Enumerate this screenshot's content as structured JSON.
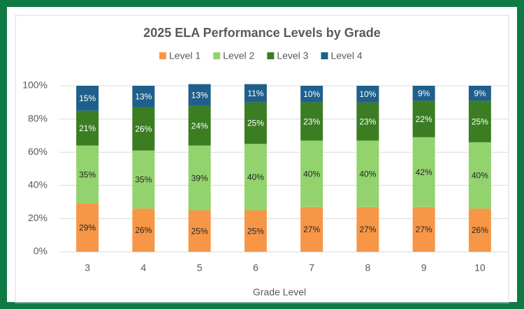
{
  "chart_data": {
    "type": "stacked_bar",
    "title": "2025 ELA Performance Levels by Grade",
    "x_label": "Grade Level",
    "categories": [
      "3",
      "4",
      "5",
      "6",
      "7",
      "8",
      "9",
      "10"
    ],
    "series": [
      {
        "name": "Level 1",
        "color": "#f79646",
        "values": [
          29,
          26,
          25,
          25,
          27,
          27,
          27,
          26
        ],
        "value_labels": [
          "29%",
          "26%",
          "25%",
          "25%",
          "27%",
          "27%",
          "27%",
          "26%"
        ]
      },
      {
        "name": "Level 2",
        "color": "#92d36e",
        "values": [
          35,
          35,
          39,
          40,
          40,
          40,
          42,
          40
        ],
        "value_labels": [
          "35%",
          "35%",
          "39%",
          "40%",
          "40%",
          "40%",
          "42%",
          "40%"
        ]
      },
      {
        "name": "Level 3",
        "color": "#3b7d23",
        "values": [
          21,
          26,
          24,
          25,
          23,
          23,
          22,
          25
        ],
        "value_labels": [
          "21%",
          "26%",
          "24%",
          "25%",
          "23%",
          "23%",
          "22%",
          "25%"
        ]
      },
      {
        "name": "Level 4",
        "color": "#1f5f8b",
        "values": [
          15,
          13,
          13,
          11,
          10,
          10,
          9,
          9
        ],
        "value_labels": [
          "15%",
          "13%",
          "13%",
          "11%",
          "10%",
          "10%",
          "9%",
          "9%"
        ]
      }
    ],
    "ylim": [
      0,
      100
    ],
    "yticks": [
      {
        "value": 0,
        "label": "0%"
      },
      {
        "value": 20,
        "label": "20%"
      },
      {
        "value": 40,
        "label": "40%"
      },
      {
        "value": 60,
        "label": "60%"
      },
      {
        "value": 80,
        "label": "80%"
      },
      {
        "value": 100,
        "label": "100%"
      }
    ],
    "grid": true,
    "legend": "top"
  }
}
